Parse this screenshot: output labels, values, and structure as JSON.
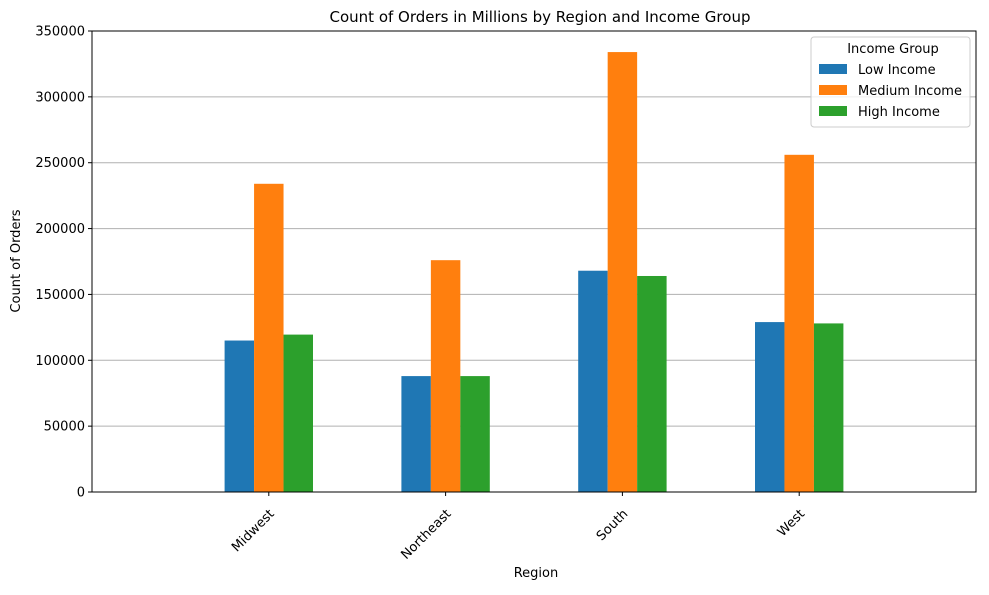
{
  "chart_data": {
    "type": "bar",
    "title": "Count of Orders in Millions by Region and Income Group",
    "xlabel": "Region",
    "ylabel": "Count of Orders",
    "categories": [
      "Midwest",
      "Northeast",
      "South",
      "West"
    ],
    "series": [
      {
        "name": "Low Income",
        "color": "#1f77b4",
        "values": [
          115000,
          88000,
          168000,
          129000
        ]
      },
      {
        "name": "Medium Income",
        "color": "#ff7f0e",
        "values": [
          234000,
          176000,
          334000,
          256000
        ]
      },
      {
        "name": "High Income",
        "color": "#2ca02c",
        "values": [
          119500,
          88000,
          164000,
          128000
        ]
      }
    ],
    "ylim": [
      0,
      350000
    ],
    "yticks": [
      "0",
      "50000",
      "100000",
      "150000",
      "200000",
      "250000",
      "300000",
      "350000"
    ],
    "grid": "y",
    "legend_title": "Income Group",
    "legend_position": "top-right"
  }
}
